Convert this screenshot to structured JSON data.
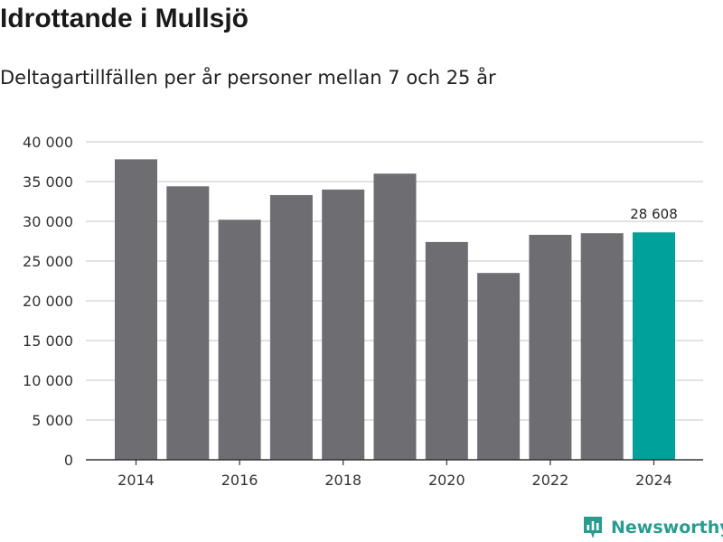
{
  "header": {
    "title": "Idrottande i Mullsjö",
    "subtitle": "Deltagartillfällen per år personer mellan 7 och 25 år"
  },
  "brand": {
    "name": "Newsworthy",
    "icon": "newsworthy-logo-icon",
    "color": "#2a9c8f"
  },
  "chart_data": {
    "type": "bar",
    "title": "Idrottande i Mullsjö",
    "subtitle": "Deltagartillfällen per år personer mellan 7 och 25 år",
    "xlabel": "",
    "ylabel": "",
    "categories": [
      "2014",
      "2015",
      "2016",
      "2017",
      "2018",
      "2019",
      "2020",
      "2021",
      "2022",
      "2023",
      "2024"
    ],
    "values": [
      37800,
      34400,
      30200,
      33300,
      34000,
      36000,
      27400,
      23500,
      28300,
      28500,
      28608
    ],
    "ylim": [
      0,
      40000
    ],
    "yticks": [
      0,
      5000,
      10000,
      15000,
      20000,
      25000,
      30000,
      35000,
      40000
    ],
    "ytick_labels": [
      "0",
      "5 000",
      "10 000",
      "15 000",
      "20 000",
      "25 000",
      "30 000",
      "35 000",
      "40 000"
    ],
    "xtick_labels": [
      "2014",
      "2016",
      "2018",
      "2020",
      "2022",
      "2024"
    ],
    "highlight_index": 10,
    "highlight_label": "28 608",
    "bar_color": "#6e6d72",
    "highlight_color": "#00a19a",
    "grid": true
  }
}
